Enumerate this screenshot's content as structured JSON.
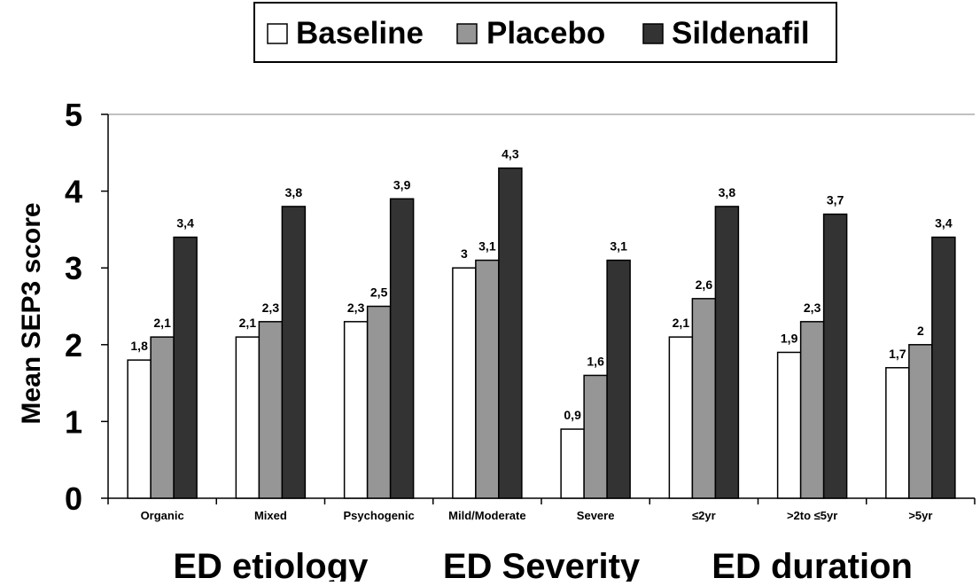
{
  "chart_data": {
    "type": "bar",
    "categories": [
      "Organic",
      "Mixed",
      "Psychogenic",
      "Mild/Moderate",
      "Severe",
      "≤2yr",
      ">2to ≤5yr",
      ">5yr"
    ],
    "series": [
      {
        "name": "Baseline",
        "values": [
          1.8,
          2.1,
          2.3,
          3.0,
          0.9,
          2.1,
          1.9,
          1.7
        ],
        "labels": [
          "1,8",
          "2,1",
          "2,3",
          "3",
          "0,9",
          "2,1",
          "1,9",
          "1,7"
        ],
        "color": "#ffffff"
      },
      {
        "name": "Placebo",
        "values": [
          2.1,
          2.3,
          2.5,
          3.1,
          1.6,
          2.6,
          2.3,
          2.0
        ],
        "labels": [
          "2,1",
          "2,3",
          "2,5",
          "3,1",
          "1,6",
          "2,6",
          "2,3",
          "2"
        ],
        "color": "#969696"
      },
      {
        "name": "Sildenafil",
        "values": [
          3.4,
          3.8,
          3.9,
          4.3,
          3.1,
          3.8,
          3.7,
          3.4
        ],
        "labels": [
          "3,4",
          "3,8",
          "3,9",
          "4,3",
          "3,1",
          "3,8",
          "3,7",
          "3,4"
        ],
        "color": "#333333"
      }
    ],
    "ylabel": "Mean SEP3 score",
    "ylim": [
      0,
      5
    ],
    "yticks": [
      "0",
      "1",
      "2",
      "3",
      "4",
      "5"
    ],
    "groups": [
      {
        "label": "ED etiology",
        "categories": [
          "Organic",
          "Mixed",
          "Psychogenic"
        ]
      },
      {
        "label": "ED Severity",
        "categories": [
          "Mild/Moderate",
          "Severe"
        ]
      },
      {
        "label": "ED duration",
        "categories": [
          "≤2yr",
          ">2to ≤5yr",
          ">5yr"
        ]
      }
    ],
    "legend_position": "top",
    "grid": false
  }
}
